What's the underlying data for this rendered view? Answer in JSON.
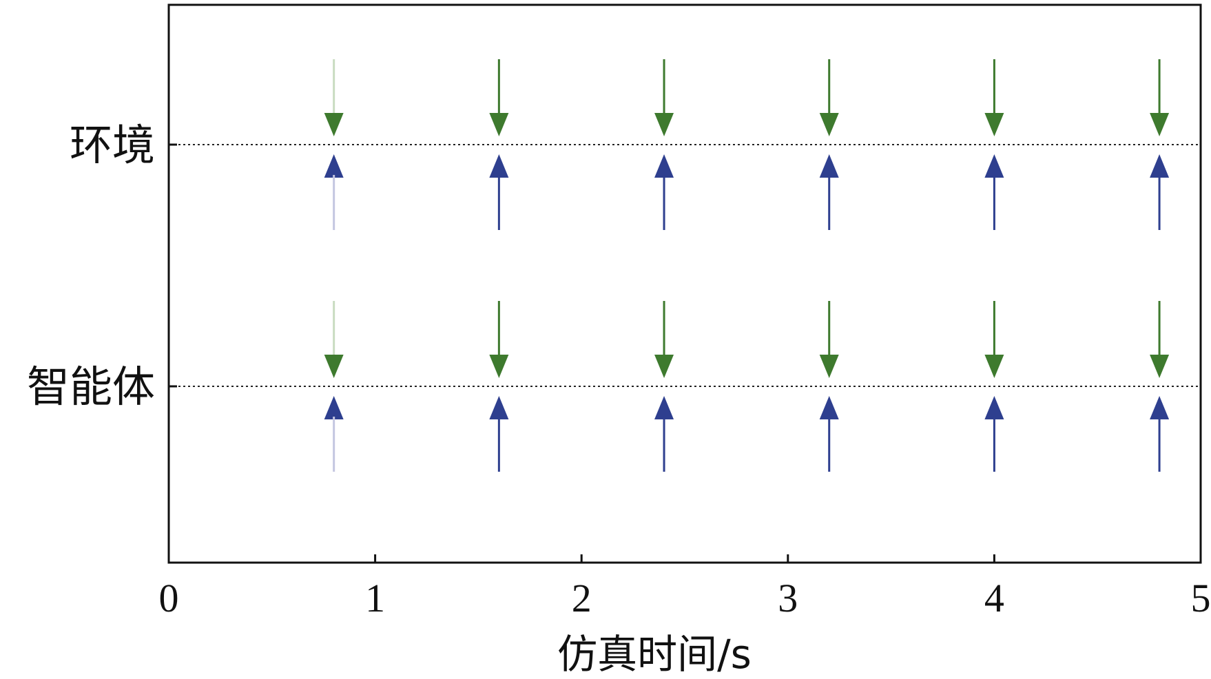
{
  "chart_data": {
    "type": "scatter",
    "title": "",
    "xlabel": "仿真时间/s",
    "ylabel": "",
    "xlim": [
      0,
      5
    ],
    "x_ticks": [
      0,
      1,
      2,
      3,
      4,
      5
    ],
    "categories": [
      "环境",
      "智能体"
    ],
    "grid": false,
    "series": [
      {
        "marker": "down-arrow",
        "color": "#3e7a2e",
        "first_event_color": "#c8dcc0",
        "points": [
          {
            "category": "环境",
            "x": [
              0.8,
              1.6,
              2.4,
              3.2,
              4.0,
              4.8
            ]
          },
          {
            "category": "智能体",
            "x": [
              0.8,
              1.6,
              2.4,
              3.2,
              4.0,
              4.8
            ]
          }
        ]
      },
      {
        "marker": "up-arrow",
        "color": "#2e3f8f",
        "first_event_color": "#c4c6e0",
        "points": [
          {
            "category": "环境",
            "x": [
              0.8,
              1.6,
              2.4,
              3.2,
              4.0,
              4.8
            ]
          },
          {
            "category": "智能体",
            "x": [
              0.8,
              1.6,
              2.4,
              3.2,
              4.0,
              4.8
            ]
          }
        ]
      }
    ]
  }
}
